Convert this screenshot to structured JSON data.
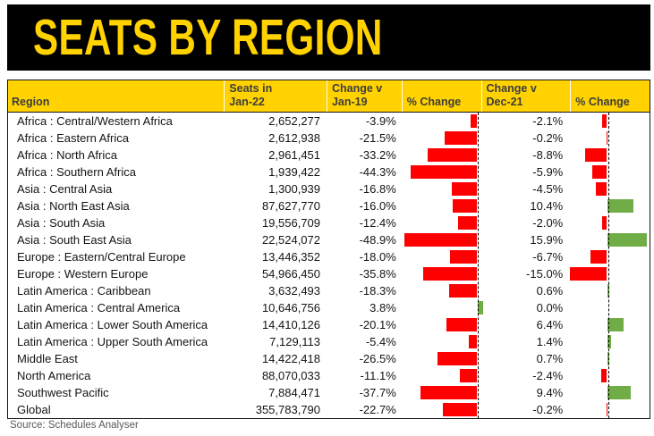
{
  "page": {
    "title": "SEATS BY REGION",
    "source": "Source: Schedules Analyser"
  },
  "colors": {
    "banner_bg": "#000000",
    "accent_yellow": "#FFD200",
    "negative_red": "#FF0000",
    "positive_green": "#70AD47",
    "header_text": "#3d3d3d",
    "body_text": "#141414",
    "source_text": "#595959"
  },
  "table": {
    "headers": [
      {
        "line1": "",
        "line2": "Region"
      },
      {
        "line1": "Seats in",
        "line2": "Jan-22"
      },
      {
        "line1": "Change v",
        "line2": "Jan-19"
      },
      {
        "line1": "",
        "line2": "% Change"
      },
      {
        "line1": "Change v",
        "line2": "Dec-21"
      },
      {
        "line1": "",
        "line2": "% Change"
      }
    ],
    "rows": [
      {
        "region": "Africa : Central/Western Africa",
        "seats": "2,652,277",
        "chg_jan19": "-3.9%",
        "chg_jan19_value": -3.9,
        "chg_dec21": "-2.1%",
        "chg_dec21_value": -2.1
      },
      {
        "region": "Africa : Eastern Africa",
        "seats": "2,612,938",
        "chg_jan19": "-21.5%",
        "chg_jan19_value": -21.5,
        "chg_dec21": "-0.2%",
        "chg_dec21_value": -0.2
      },
      {
        "region": "Africa : North Africa",
        "seats": "2,961,451",
        "chg_jan19": "-33.2%",
        "chg_jan19_value": -33.2,
        "chg_dec21": "-8.8%",
        "chg_dec21_value": -8.8
      },
      {
        "region": "Africa : Southern Africa",
        "seats": "1,939,422",
        "chg_jan19": "-44.3%",
        "chg_jan19_value": -44.3,
        "chg_dec21": "-5.9%",
        "chg_dec21_value": -5.9
      },
      {
        "region": "Asia : Central Asia",
        "seats": "1,300,939",
        "chg_jan19": "-16.8%",
        "chg_jan19_value": -16.8,
        "chg_dec21": "-4.5%",
        "chg_dec21_value": -4.5
      },
      {
        "region": "Asia : North East Asia",
        "seats": "87,627,770",
        "chg_jan19": "-16.0%",
        "chg_jan19_value": -16.0,
        "chg_dec21": "10.4%",
        "chg_dec21_value": 10.4
      },
      {
        "region": "Asia : South Asia",
        "seats": "19,556,709",
        "chg_jan19": "-12.4%",
        "chg_jan19_value": -12.4,
        "chg_dec21": "-2.0%",
        "chg_dec21_value": -2.0
      },
      {
        "region": "Asia : South East Asia",
        "seats": "22,524,072",
        "chg_jan19": "-48.9%",
        "chg_jan19_value": -48.9,
        "chg_dec21": "15.9%",
        "chg_dec21_value": 15.9
      },
      {
        "region": "Europe : Eastern/Central Europe",
        "seats": "13,446,352",
        "chg_jan19": "-18.0%",
        "chg_jan19_value": -18.0,
        "chg_dec21": "-6.7%",
        "chg_dec21_value": -6.7
      },
      {
        "region": "Europe : Western Europe",
        "seats": "54,966,450",
        "chg_jan19": "-35.8%",
        "chg_jan19_value": -35.8,
        "chg_dec21": "-15.0%",
        "chg_dec21_value": -15.0
      },
      {
        "region": "Latin America : Caribbean",
        "seats": "3,632,493",
        "chg_jan19": "-18.3%",
        "chg_jan19_value": -18.3,
        "chg_dec21": "0.6%",
        "chg_dec21_value": 0.6
      },
      {
        "region": "Latin America : Central America",
        "seats": "10,646,756",
        "chg_jan19": "3.8%",
        "chg_jan19_value": 3.8,
        "chg_dec21": "0.0%",
        "chg_dec21_value": 0.0
      },
      {
        "region": "Latin America : Lower South America",
        "seats": "14,410,126",
        "chg_jan19": "-20.1%",
        "chg_jan19_value": -20.1,
        "chg_dec21": "6.4%",
        "chg_dec21_value": 6.4
      },
      {
        "region": "Latin America : Upper South America",
        "seats": "7,129,113",
        "chg_jan19": "-5.4%",
        "chg_jan19_value": -5.4,
        "chg_dec21": "1.4%",
        "chg_dec21_value": 1.4
      },
      {
        "region": "Middle East",
        "seats": "14,422,418",
        "chg_jan19": "-26.5%",
        "chg_jan19_value": -26.5,
        "chg_dec21": "0.7%",
        "chg_dec21_value": 0.7
      },
      {
        "region": "North America",
        "seats": "88,070,033",
        "chg_jan19": "-11.1%",
        "chg_jan19_value": -11.1,
        "chg_dec21": "-2.4%",
        "chg_dec21_value": -2.4
      },
      {
        "region": "Southwest Pacific",
        "seats": "7,884,471",
        "chg_jan19": "-37.7%",
        "chg_jan19_value": -37.7,
        "chg_dec21": "9.4%",
        "chg_dec21_value": 9.4
      },
      {
        "region": "Global",
        "seats": "355,783,790",
        "chg_jan19": "-22.7%",
        "chg_jan19_value": -22.7,
        "chg_dec21": "-0.2%",
        "chg_dec21_value": -0.2
      }
    ]
  },
  "chart_data": {
    "type": "table",
    "title": "SEATS BY REGION",
    "source": "Source: Schedules Analyser",
    "columns": [
      "Region",
      "Seats in Jan-22",
      "Change v Jan-19",
      "% Change",
      "Change v Dec-21",
      "% Change"
    ],
    "categories": [
      "Africa : Central/Western Africa",
      "Africa : Eastern Africa",
      "Africa : North Africa",
      "Africa : Southern Africa",
      "Asia : Central Asia",
      "Asia : North East Asia",
      "Asia : South Asia",
      "Asia : South East Asia",
      "Europe : Eastern/Central Europe",
      "Europe : Western Europe",
      "Latin America : Caribbean",
      "Latin America : Central America",
      "Latin America : Lower South America",
      "Latin America : Upper South America",
      "Middle East",
      "North America",
      "Southwest Pacific",
      "Global"
    ],
    "series": [
      {
        "name": "Seats in Jan-22",
        "values": [
          2652277,
          2612938,
          2961451,
          1939422,
          1300939,
          87627770,
          19556709,
          22524072,
          13446352,
          54966450,
          3632493,
          10646756,
          14410126,
          7129113,
          14422418,
          88070033,
          7884471,
          355783790
        ]
      },
      {
        "name": "Change v Jan-19 (%)",
        "type": "bar",
        "values": [
          -3.9,
          -21.5,
          -33.2,
          -44.3,
          -16.8,
          -16.0,
          -12.4,
          -48.9,
          -18.0,
          -35.8,
          -18.3,
          3.8,
          -20.1,
          -5.4,
          -26.5,
          -11.1,
          -37.7,
          -22.7
        ],
        "xlim": [
          -51,
          4
        ],
        "negative_color": "#FF0000",
        "positive_color": "#70AD47"
      },
      {
        "name": "Change v Dec-21 (%)",
        "type": "bar",
        "values": [
          -2.1,
          -0.2,
          -8.8,
          -5.9,
          -4.5,
          10.4,
          -2.0,
          15.9,
          -6.7,
          -15.0,
          0.6,
          0.0,
          6.4,
          1.4,
          0.7,
          -2.4,
          9.4,
          -0.2
        ],
        "xlim": [
          -16,
          18
        ],
        "negative_color": "#FF0000",
        "positive_color": "#70AD47"
      }
    ],
    "legend": "none",
    "grid": "off"
  }
}
